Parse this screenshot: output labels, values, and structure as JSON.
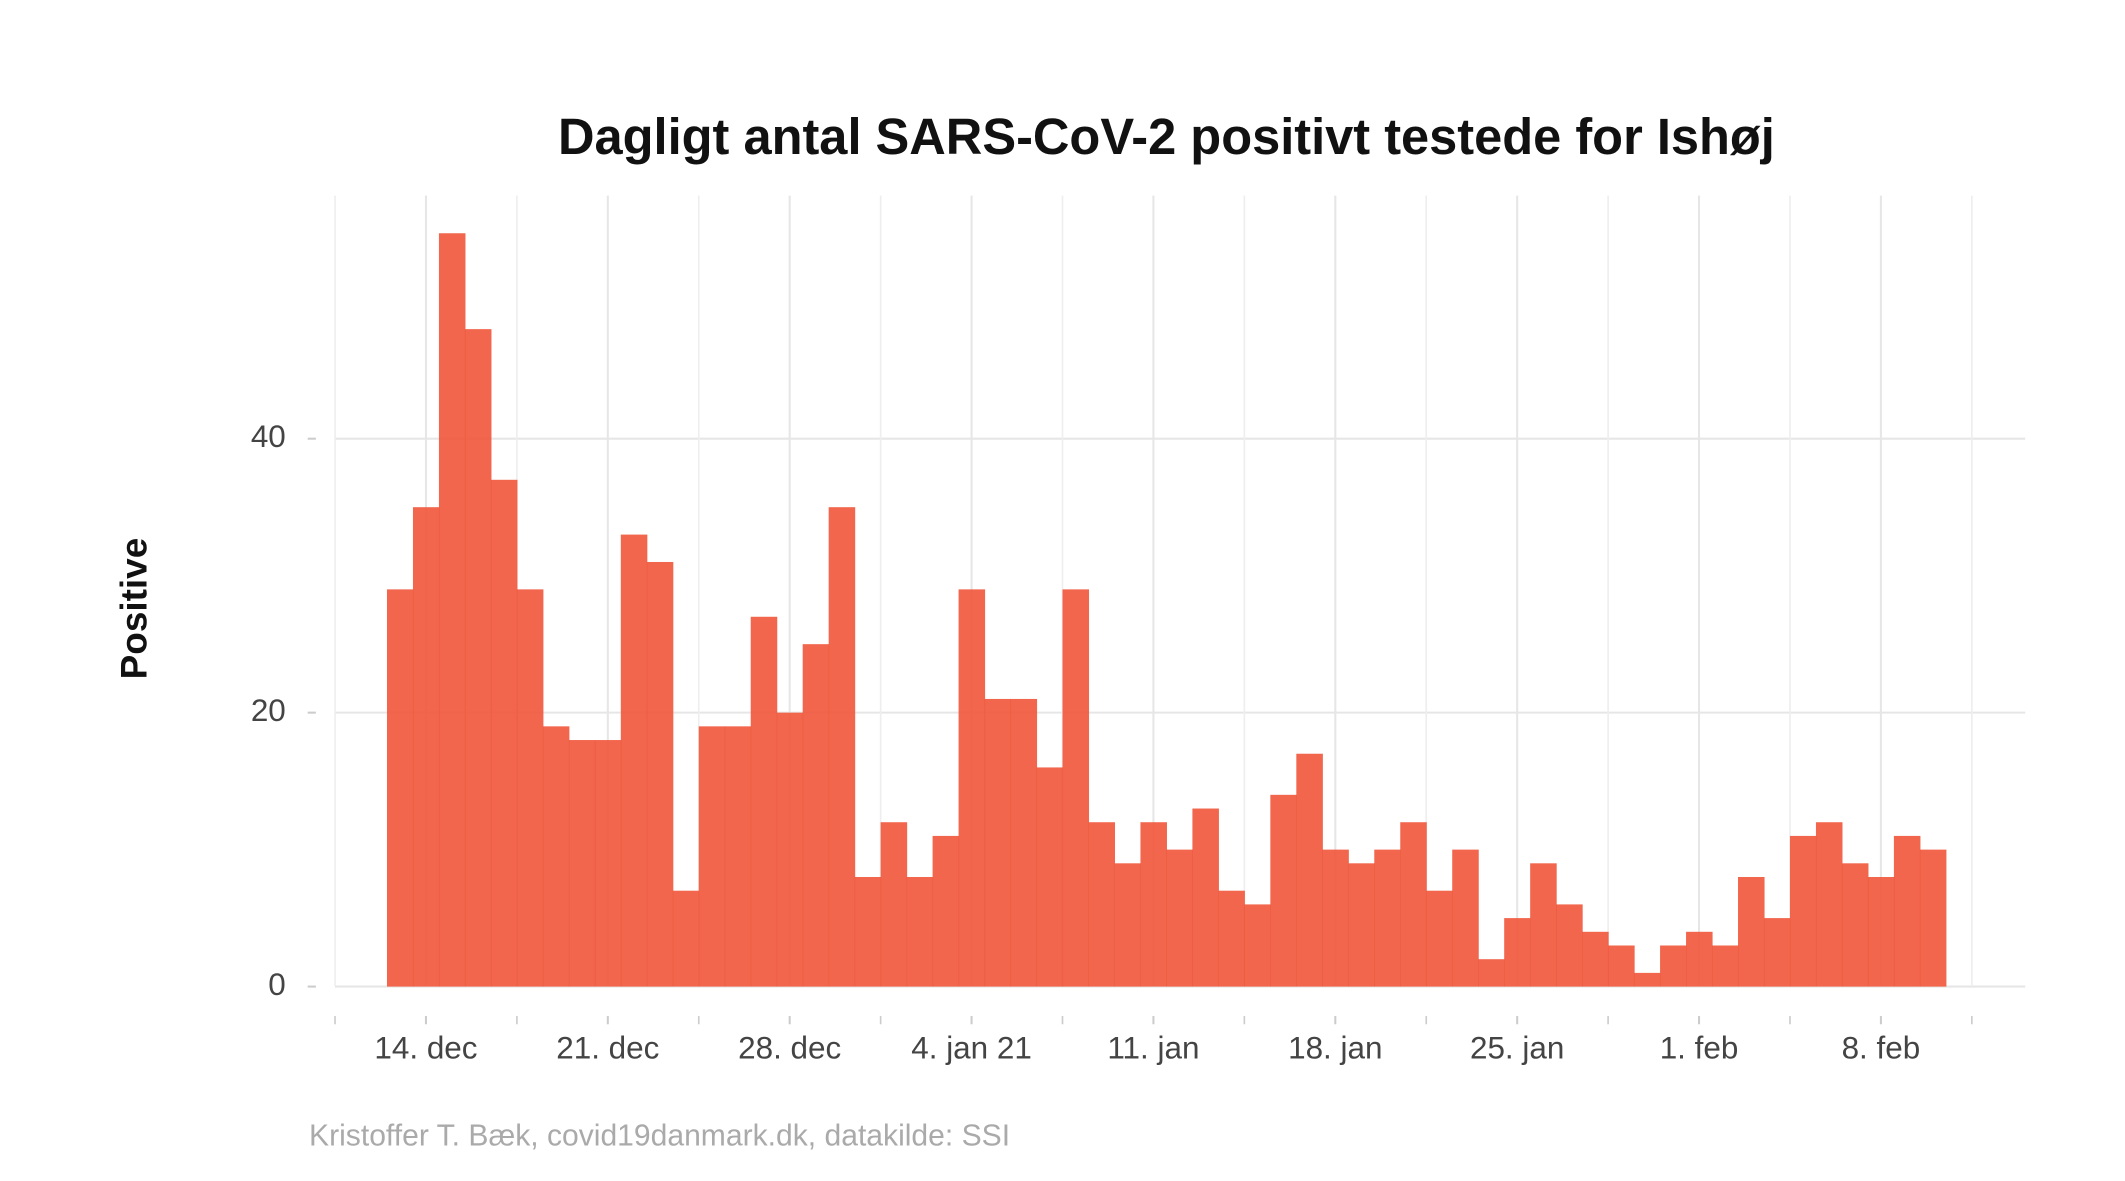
{
  "chart_data": {
    "type": "bar",
    "title": "Dagligt antal SARS-CoV-2 positivt testede for Ishøj",
    "y_label": "Positive",
    "caption": "Kristoffer T. Bæk, covid19danmark.dk, datakilde: SSI",
    "categories": [
      null,
      "14. dec",
      null,
      null,
      null,
      null,
      null,
      null,
      "21. dec",
      null,
      null,
      null,
      null,
      null,
      null,
      "28. dec",
      null,
      null,
      null,
      null,
      null,
      null,
      "4. jan 21",
      null,
      null,
      null,
      null,
      null,
      null,
      "11. jan",
      null,
      null,
      null,
      null,
      null,
      null,
      "18. jan",
      null,
      null,
      null,
      null,
      null,
      null,
      "25. jan",
      null,
      null,
      null,
      null,
      null,
      null,
      "1. feb",
      null,
      null,
      null,
      null,
      null,
      null,
      "8. feb",
      null,
      null
    ],
    "values": [
      29,
      35,
      55,
      48,
      37,
      29,
      19,
      18,
      18,
      33,
      31,
      7,
      19,
      19,
      27,
      20,
      25,
      35,
      8,
      12,
      8,
      11,
      29,
      21,
      21,
      16,
      29,
      12,
      9,
      12,
      10,
      13,
      7,
      6,
      14,
      17,
      10,
      9,
      10,
      12,
      7,
      10,
      2,
      5,
      9,
      6,
      4,
      3,
      1,
      3,
      4,
      3,
      8,
      5,
      11,
      12,
      9,
      8,
      11,
      10
    ],
    "color": "#f0553a",
    "ylim": [
      -2.75,
      57.75
    ],
    "yticks": [
      0,
      20,
      40
    ],
    "grid": true
  }
}
